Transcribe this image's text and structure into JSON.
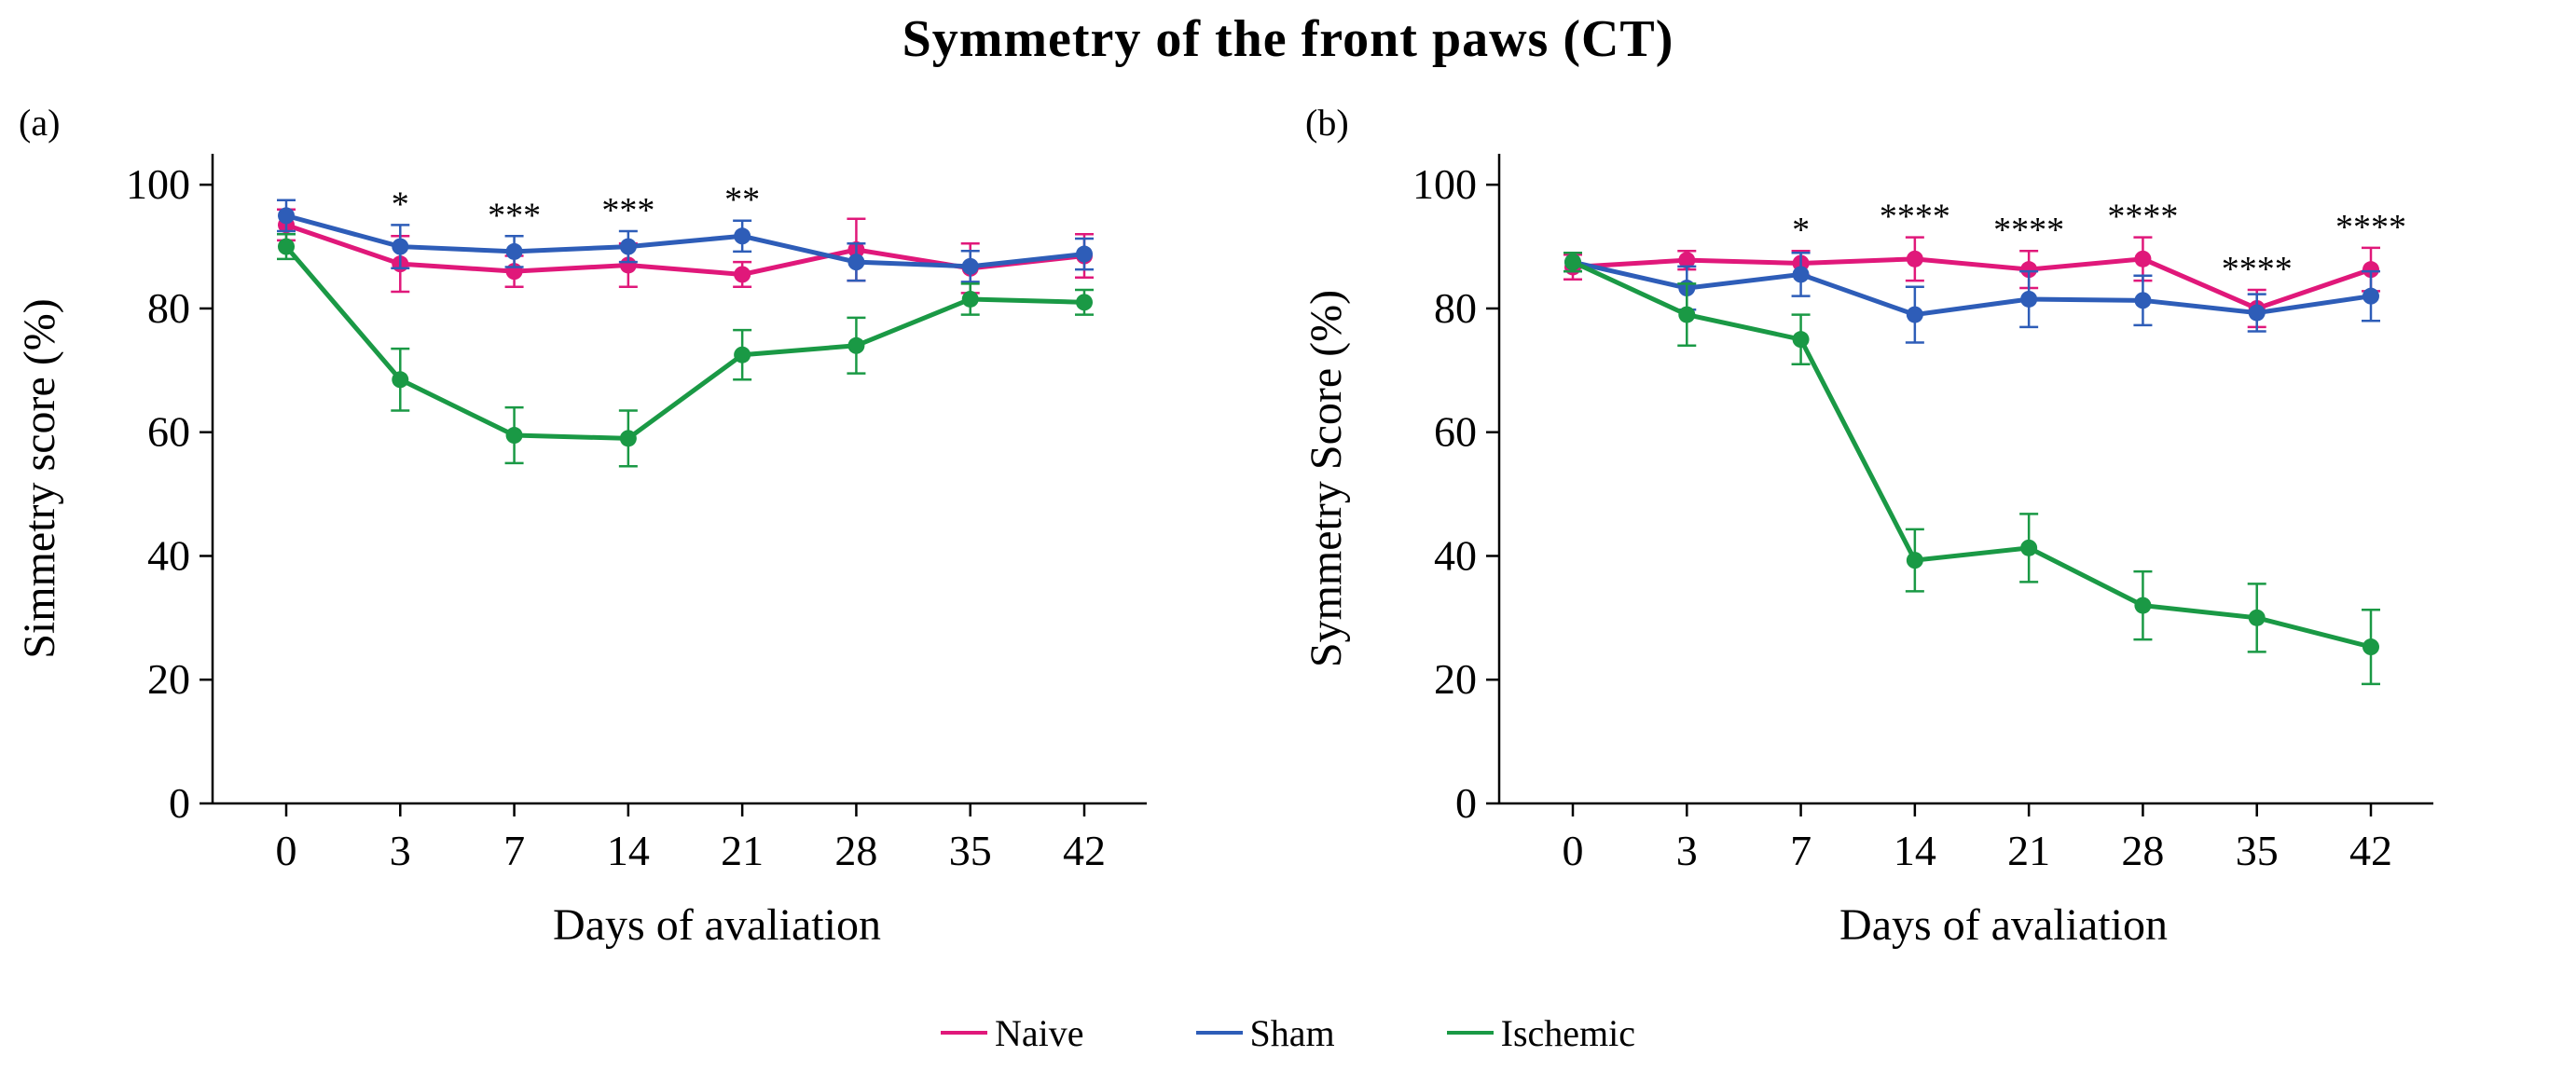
{
  "figure": {
    "title": "Symmetry of the front paws (CT)"
  },
  "legend": [
    {
      "name": "Naive",
      "color": "#e0187a"
    },
    {
      "name": "Sham",
      "color": "#2e5db8"
    },
    {
      "name": "Ischemic",
      "color": "#1a9945"
    }
  ],
  "chart_data": [
    {
      "panel_label": "(a)",
      "type": "line",
      "xlabel": "Days of avaliation",
      "ylabel": "Simmetry score (%)",
      "x": [
        "0",
        "3",
        "7",
        "14",
        "21",
        "28",
        "35",
        "42"
      ],
      "ylim": [
        0,
        105
      ],
      "yticks": [
        0,
        20,
        40,
        60,
        80,
        100
      ],
      "grid": false,
      "series": [
        {
          "name": "Naive",
          "color": "#e0187a",
          "values": [
            93.5,
            87.2,
            86.0,
            87.0,
            85.5,
            89.5,
            86.5,
            88.5
          ],
          "errors": [
            2.5,
            4.5,
            2.5,
            3.5,
            2.0,
            5.0,
            4.0,
            3.5
          ]
        },
        {
          "name": "Sham",
          "color": "#2e5db8",
          "values": [
            95.0,
            90.0,
            89.2,
            90.0,
            91.7,
            87.5,
            86.8,
            88.8
          ],
          "errors": [
            2.5,
            3.5,
            2.5,
            2.5,
            2.5,
            3.0,
            2.5,
            2.5
          ]
        },
        {
          "name": "Ischemic",
          "color": "#1a9945",
          "values": [
            90.0,
            68.5,
            59.5,
            59.0,
            72.5,
            74.0,
            81.5,
            81.0
          ],
          "errors": [
            2.0,
            5.0,
            4.5,
            4.5,
            4.0,
            4.5,
            2.5,
            2.0
          ]
        }
      ],
      "significance": [
        "",
        "*",
        "***",
        "***",
        "**",
        "",
        "",
        ""
      ]
    },
    {
      "panel_label": "(b)",
      "type": "line",
      "xlabel": "Days of avaliation",
      "ylabel": "Symmetry Score (%)",
      "x": [
        "0",
        "3",
        "7",
        "14",
        "21",
        "28",
        "35",
        "42"
      ],
      "ylim": [
        0,
        105
      ],
      "yticks": [
        0,
        20,
        40,
        60,
        80,
        100
      ],
      "grid": false,
      "series": [
        {
          "name": "Naive",
          "color": "#e0187a",
          "values": [
            86.7,
            87.8,
            87.3,
            88.0,
            86.3,
            88.0,
            80.0,
            86.3
          ],
          "errors": [
            2.0,
            1.5,
            2.0,
            3.5,
            3.0,
            3.5,
            3.0,
            3.5
          ]
        },
        {
          "name": "Sham",
          "color": "#2e5db8",
          "values": [
            87.5,
            83.3,
            85.5,
            79.0,
            81.5,
            81.3,
            79.3,
            82.0
          ],
          "errors": [
            1.5,
            3.5,
            3.5,
            4.5,
            4.5,
            4.0,
            3.0,
            4.0
          ]
        },
        {
          "name": "Ischemic",
          "color": "#1a9945",
          "values": [
            87.5,
            79.0,
            75.0,
            39.3,
            41.3,
            32.0,
            30.0,
            25.3
          ],
          "errors": [
            1.5,
            5.0,
            4.0,
            5.0,
            5.5,
            5.5,
            5.5,
            6.0
          ]
        }
      ],
      "significance": [
        "",
        "",
        "*",
        "****",
        "****",
        "****",
        "****",
        "****"
      ]
    }
  ]
}
